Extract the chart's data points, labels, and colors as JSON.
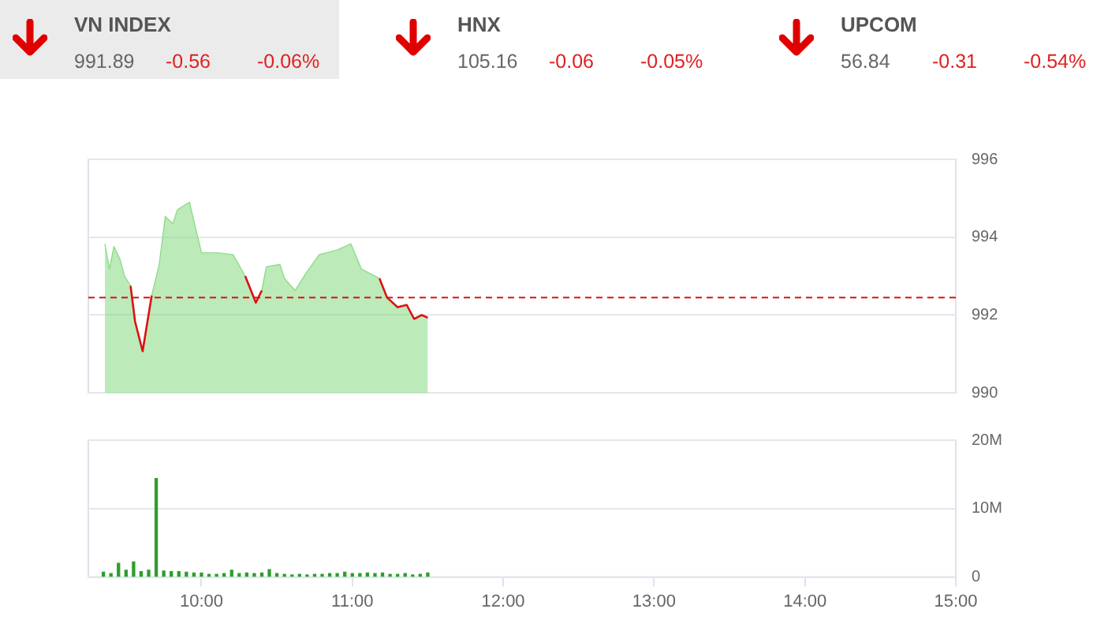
{
  "chart_data": [
    {
      "type": "other",
      "annotations": [
        "VN INDEX",
        "991.89",
        "-0.56",
        "-0.06%",
        "HNX",
        "105.16",
        "-0.06",
        "-0.05%",
        "UPCOM",
        "56.84",
        "-0.31",
        "-0.54%"
      ]
    },
    {
      "type": "area",
      "x": [
        9.36,
        9.39,
        9.42,
        9.46,
        9.49,
        9.53,
        9.56,
        9.61,
        9.67,
        9.72,
        9.76,
        9.81,
        9.84,
        9.92,
        10.0,
        10.1,
        10.21,
        10.29,
        10.36,
        10.4,
        10.43,
        10.52,
        10.55,
        10.62,
        10.69,
        10.78,
        10.9,
        10.99,
        11.06,
        11.18,
        11.23,
        11.3,
        11.36,
        11.41,
        11.46,
        11.5
      ],
      "series": [
        {
          "type": "line",
          "color": "#dd1111",
          "values": [
            null,
            null,
            null,
            null,
            null,
            992.75,
            991.83,
            991.07,
            992.5,
            null,
            null,
            null,
            null,
            null,
            null,
            null,
            null,
            993.0,
            992.32,
            992.63,
            null,
            null,
            null,
            null,
            null,
            null,
            null,
            null,
            null,
            992.94,
            992.45,
            992.2,
            992.26,
            991.9,
            992.0,
            991.93
          ]
        },
        {
          "color": "#8fdc8a",
          "values": [
            993.83,
            993.18,
            993.76,
            993.43,
            993.0,
            992.75,
            991.83,
            991.07,
            992.5,
            993.3,
            994.53,
            994.35,
            994.7,
            994.9,
            993.6,
            993.6,
            993.55,
            993.0,
            992.32,
            992.63,
            993.24,
            993.3,
            992.94,
            992.63,
            993.06,
            993.55,
            993.67,
            993.83,
            993.18,
            992.94,
            992.45,
            992.2,
            992.26,
            991.9,
            992.0,
            991.93
          ]
        }
      ],
      "xlim": [
        9.25,
        15
      ],
      "ylim": [
        990,
        996
      ],
      "yticks": [
        990,
        992,
        994,
        996
      ],
      "grid": "y",
      "tick_labels": "y",
      "ref_lines": [
        {
          "axis": "y",
          "value": 992.45,
          "color": "#dd1111",
          "line_style": "dashed"
        }
      ]
    },
    {
      "type": "bar",
      "x": [
        9.35,
        9.4,
        9.45,
        9.5,
        9.55,
        9.6,
        9.65,
        9.7,
        9.75,
        9.8,
        9.85,
        9.9,
        9.95,
        10.0,
        10.05,
        10.1,
        10.15,
        10.2,
        10.25,
        10.3,
        10.35,
        10.4,
        10.45,
        10.5,
        10.55,
        10.6,
        10.65,
        10.7,
        10.75,
        10.8,
        10.85,
        10.9,
        10.95,
        11.0,
        11.05,
        11.1,
        11.15,
        11.2,
        11.25,
        11.3,
        11.35,
        11.4,
        11.45,
        11.5
      ],
      "series": [
        {
          "color": "#2e9e2e",
          "values": [
            700000,
            500000,
            2000000,
            1000000,
            2200000,
            800000,
            1000000,
            14400000,
            900000,
            800000,
            800000,
            700000,
            600000,
            600000,
            400000,
            400000,
            500000,
            1000000,
            500000,
            600000,
            500000,
            600000,
            1100000,
            500000,
            400000,
            300000,
            400000,
            300000,
            400000,
            400000,
            500000,
            500000,
            700000,
            500000,
            500000,
            600000,
            500000,
            600000,
            400000,
            400000,
            500000,
            300000,
            400000,
            600000
          ]
        }
      ],
      "xlim": [
        9.25,
        15
      ],
      "xticks": [
        {
          "value": 10,
          "label": "10:00"
        },
        {
          "value": 11,
          "label": "11:00"
        },
        {
          "value": 12,
          "label": "12:00"
        },
        {
          "value": 13,
          "label": "13:00"
        },
        {
          "value": 14,
          "label": "14:00"
        },
        {
          "value": 15,
          "label": "15:00"
        }
      ],
      "ylim": [
        0,
        20000000
      ],
      "yticks": [
        0,
        {
          "value": 10000000,
          "label": "10M"
        },
        {
          "value": 20000000,
          "label": "20M"
        }
      ],
      "grid": "y"
    }
  ]
}
